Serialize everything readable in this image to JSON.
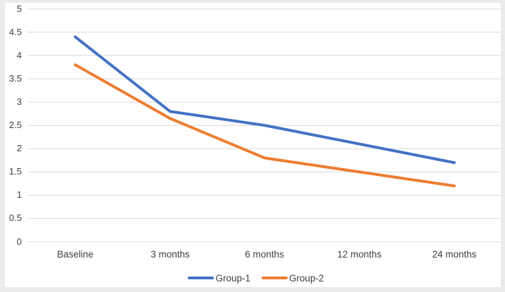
{
  "chart_data": {
    "type": "line",
    "title": "",
    "xlabel": "",
    "ylabel": "",
    "categories": [
      "Baseline",
      "3 months",
      "6 months",
      "12 months",
      "24 months"
    ],
    "series": [
      {
        "name": "Group-1",
        "color": "#4472C4",
        "values": [
          4.4,
          2.8,
          2.5,
          2.1,
          1.7
        ]
      },
      {
        "name": "Group-2",
        "color": "#ED7D31",
        "values": [
          3.8,
          2.65,
          1.8,
          1.5,
          1.2
        ]
      }
    ],
    "ylim": [
      0,
      5
    ],
    "y_tick_step": 0.5,
    "y_tick_labels": [
      "5",
      "4.5",
      "4",
      "3.5",
      "3",
      "2.5",
      "2",
      "1.5",
      "1",
      "0.5",
      "0"
    ],
    "grid": true,
    "legend_position": "bottom"
  },
  "colors": {
    "page_background": "#ebebeb",
    "plot_background": "#ffffff",
    "gridline": "#d9d9d9",
    "axis_text": "#3f3f3f"
  }
}
